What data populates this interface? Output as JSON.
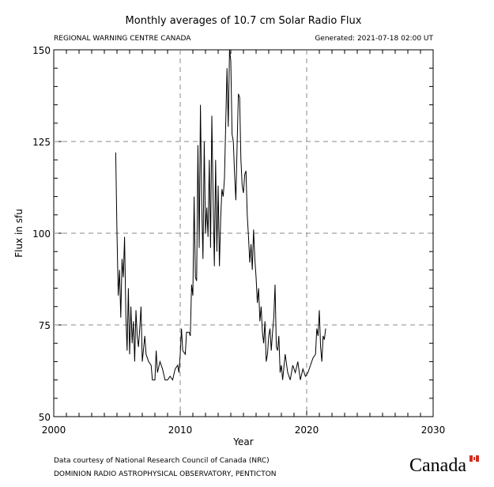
{
  "chart_data": {
    "type": "line",
    "title": "Monthly averages of 10.7 cm Solar Radio Flux",
    "subtitle_left": "REGIONAL WARNING CENTRE CANADA",
    "subtitle_right": "Generated: 2021-07-18 02:00 UT",
    "xlabel": "Year",
    "ylabel": "Flux in sfu",
    "footer": [
      "Data courtesy of National Research Council of Canada (NRC)",
      "DOMINION RADIO ASTROPHYSICAL OBSERVATORY, PENTICTON"
    ],
    "logo": "Canada",
    "xlim": [
      2000,
      2030
    ],
    "xticks": [
      2000,
      2010,
      2020,
      2030
    ],
    "xminor_step": 1,
    "ylim": [
      50,
      150
    ],
    "yticks": [
      50,
      75,
      100,
      125,
      150
    ],
    "yminor_step": 5,
    "grid": true,
    "color": "#000000",
    "x": [
      2004.9,
      2005.0,
      2005.1,
      2005.2,
      2005.3,
      2005.4,
      2005.5,
      2005.6,
      2005.7,
      2005.8,
      2005.9,
      2006.0,
      2006.1,
      2006.2,
      2006.3,
      2006.4,
      2006.5,
      2006.6,
      2006.7,
      2006.8,
      2006.9,
      2007.0,
      2007.2,
      2007.3,
      2007.5,
      2007.7,
      2007.8,
      2008.0,
      2008.1,
      2008.2,
      2008.4,
      2008.6,
      2008.8,
      2009.0,
      2009.2,
      2009.4,
      2009.6,
      2009.8,
      2009.9,
      2010.0,
      2010.1,
      2010.2,
      2010.4,
      2010.5,
      2010.7,
      2010.8,
      2010.9,
      2011.0,
      2011.1,
      2011.2,
      2011.3,
      2011.4,
      2011.5,
      2011.6,
      2011.7,
      2011.8,
      2011.9,
      2012.0,
      2012.1,
      2012.2,
      2012.3,
      2012.4,
      2012.5,
      2012.6,
      2012.7,
      2012.8,
      2012.9,
      2013.0,
      2013.1,
      2013.2,
      2013.3,
      2013.4,
      2013.5,
      2013.6,
      2013.7,
      2013.8,
      2013.9,
      2014.0,
      2014.1,
      2014.2,
      2014.3,
      2014.4,
      2014.5,
      2014.6,
      2014.7,
      2014.8,
      2014.9,
      2015.0,
      2015.1,
      2015.2,
      2015.3,
      2015.4,
      2015.5,
      2015.6,
      2015.7,
      2015.8,
      2015.9,
      2016.0,
      2016.1,
      2016.2,
      2016.3,
      2016.4,
      2016.5,
      2016.6,
      2016.7,
      2016.8,
      2016.9,
      2017.0,
      2017.1,
      2017.2,
      2017.3,
      2017.4,
      2017.5,
      2017.6,
      2017.7,
      2017.8,
      2017.9,
      2018.0,
      2018.1,
      2018.3,
      2018.5,
      2018.7,
      2018.9,
      2019.1,
      2019.3,
      2019.5,
      2019.7,
      2019.9,
      2020.1,
      2020.3,
      2020.5,
      2020.7,
      2020.8,
      2020.9,
      2021.0,
      2021.1,
      2021.2,
      2021.3,
      2021.4,
      2021.5
    ],
    "values": [
      122,
      100,
      83,
      90,
      77,
      93,
      88,
      99,
      78,
      68,
      85,
      67,
      80,
      70,
      76,
      65,
      79,
      72,
      69,
      74,
      80,
      65,
      72,
      67,
      65,
      64,
      60,
      60,
      68,
      62,
      65,
      63,
      60,
      60,
      61,
      60,
      63,
      64,
      62,
      67,
      74,
      68,
      67,
      73,
      73,
      72,
      86,
      83,
      110,
      88,
      87,
      124,
      96,
      135,
      108,
      93,
      125,
      100,
      107,
      99,
      120,
      96,
      132,
      110,
      91,
      120,
      95,
      113,
      91,
      104,
      112,
      110,
      115,
      130,
      145,
      129,
      150,
      147,
      127,
      125,
      116,
      109,
      124,
      138,
      137,
      120,
      113,
      111,
      116,
      117,
      105,
      99,
      92,
      97,
      90,
      101,
      93,
      88,
      81,
      85,
      76,
      80,
      73,
      70,
      76,
      65,
      67,
      72,
      74,
      68,
      73,
      77,
      86,
      69,
      68,
      72,
      62,
      64,
      60,
      67,
      62,
      60,
      64,
      62,
      65,
      60,
      63,
      61,
      62,
      64,
      66,
      67,
      74,
      72,
      79,
      69,
      65,
      72,
      71,
      74
    ]
  }
}
